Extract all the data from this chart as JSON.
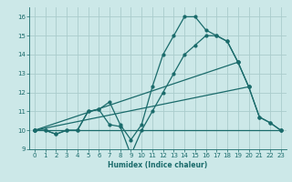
{
  "xlabel": "Humidex (Indice chaleur)",
  "ylabel": "",
  "bg_color": "#cce8e8",
  "grid_color": "#aacccc",
  "line_color": "#1a6b6b",
  "xlim": [
    -0.5,
    23.5
  ],
  "ylim": [
    9,
    16.5
  ],
  "yticks": [
    9,
    10,
    11,
    12,
    13,
    14,
    15,
    16
  ],
  "xticks": [
    0,
    1,
    2,
    3,
    4,
    5,
    6,
    7,
    8,
    9,
    10,
    11,
    12,
    13,
    14,
    15,
    16,
    17,
    18,
    19,
    20,
    21,
    22,
    23
  ],
  "lines": [
    {
      "x": [
        0,
        1,
        2,
        3,
        4,
        5,
        6,
        7,
        8,
        9,
        10,
        11,
        12,
        13,
        14,
        15,
        16,
        17,
        18,
        19,
        20,
        21,
        22,
        23
      ],
      "y": [
        10,
        10,
        9.8,
        10,
        10,
        11,
        11.1,
        11.5,
        10.3,
        9.5,
        10.3,
        12.3,
        14,
        15,
        16,
        16,
        15.3,
        15,
        14.7,
        13.6,
        12.3,
        10.7,
        10.4,
        10
      ]
    },
    {
      "x": [
        0,
        1,
        2,
        3,
        4,
        5,
        6,
        7,
        8,
        9,
        10,
        11,
        12,
        13,
        14,
        15,
        16,
        17,
        18,
        19,
        20,
        21,
        22,
        23
      ],
      "y": [
        10,
        10,
        9.8,
        10,
        10,
        11,
        11.1,
        10.3,
        10.2,
        8.7,
        10,
        11,
        12,
        13,
        14,
        14.5,
        15,
        15,
        14.7,
        13.6,
        12.3,
        10.7,
        10.4,
        10
      ]
    },
    {
      "x": [
        0,
        23
      ],
      "y": [
        10,
        10
      ]
    },
    {
      "x": [
        0,
        19
      ],
      "y": [
        10,
        13.6
      ]
    },
    {
      "x": [
        0,
        20
      ],
      "y": [
        10,
        12.3
      ]
    }
  ]
}
